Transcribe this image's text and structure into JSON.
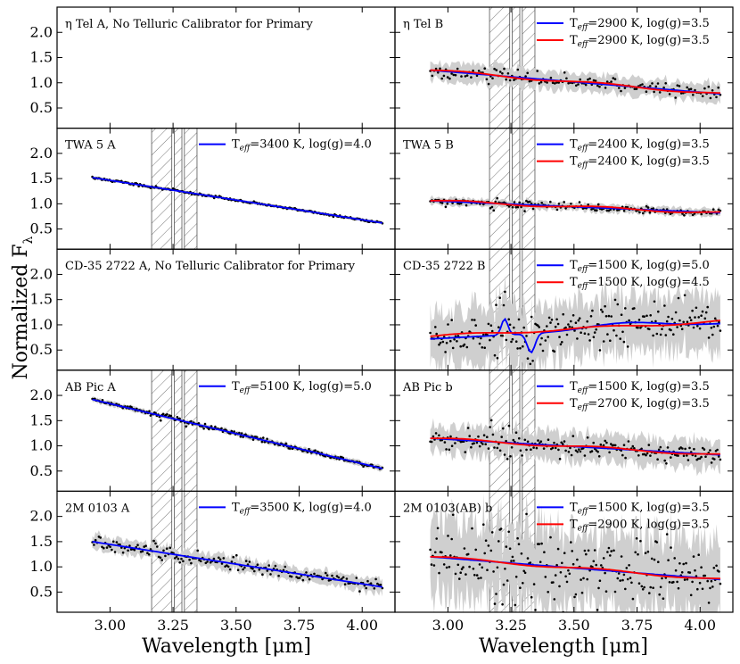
{
  "figure": {
    "ylabel_main": "Normalized F",
    "ylabel_sub": "λ",
    "xlabel": "Wavelength [μm]"
  },
  "chart_data": {
    "type": "scatter",
    "x_range": [
      2.79,
      4.13
    ],
    "x_ticks": [
      3.0,
      3.25,
      3.5,
      3.75,
      4.0
    ],
    "x_tick_labels": [
      "3.00",
      "3.25",
      "3.50",
      "3.75",
      "4.00"
    ],
    "y_range": [
      0.1,
      2.5
    ],
    "y_ticks": [
      0.5,
      1.0,
      1.5,
      2.0
    ],
    "y_tick_labels": [
      "0.5",
      "1.0",
      "1.5",
      "2.0"
    ],
    "hatched_bands": [
      [
        3.165,
        3.245
      ],
      [
        3.255,
        3.285
      ],
      [
        3.295,
        3.345
      ]
    ],
    "wavelength_range": [
      2.93,
      4.08
    ],
    "panels": [
      {
        "row": 0,
        "col": 0,
        "title": "η Tel A, No Telluric Calibrator for Primary",
        "has_data": false,
        "hatch": false,
        "series": []
      },
      {
        "row": 0,
        "col": 1,
        "title": "η Tel B",
        "has_data": true,
        "hatch": true,
        "y_start": 1.25,
        "y_end": 0.78,
        "noise": 0.06,
        "band": 0.18,
        "n_points": 150,
        "dip": 0,
        "series": [
          {
            "color": "#0000ff",
            "label_pre": "T",
            "label_sub": "eff",
            "label_post": "=2900 K, log(g)=3.5"
          },
          {
            "color": "#ff0000",
            "label_pre": "T",
            "label_sub": "eff",
            "label_post": "=2900 K, log(g)=3.5"
          }
        ]
      },
      {
        "row": 1,
        "col": 0,
        "title": "TWA 5 A",
        "has_data": true,
        "hatch": true,
        "y_start": 1.52,
        "y_end": 0.62,
        "noise": 0.012,
        "band": 0.03,
        "n_points": 220,
        "dip": 0,
        "series": [
          {
            "color": "#0000ff",
            "label_pre": "T",
            "label_sub": "eff",
            "label_post": "=3400 K, log(g)=4.0"
          }
        ]
      },
      {
        "row": 1,
        "col": 1,
        "title": "TWA 5 B",
        "has_data": true,
        "hatch": true,
        "y_start": 1.06,
        "y_end": 0.82,
        "noise": 0.035,
        "band": 0.08,
        "n_points": 170,
        "dip": 0,
        "series": [
          {
            "color": "#0000ff",
            "label_pre": "T",
            "label_sub": "eff",
            "label_post": "=2400 K, log(g)=3.5"
          },
          {
            "color": "#ff0000",
            "label_pre": "T",
            "label_sub": "eff",
            "label_post": "=2400 K, log(g)=3.5"
          }
        ]
      },
      {
        "row": 2,
        "col": 0,
        "title": "CD-35 2722 A, No Telluric Calibrator for Primary",
        "has_data": false,
        "hatch": false,
        "series": []
      },
      {
        "row": 2,
        "col": 1,
        "title": "CD-35 2722 B",
        "has_data": true,
        "hatch": true,
        "y_start": 0.72,
        "y_end": 1.02,
        "noise": 0.2,
        "band": 0.55,
        "n_points": 230,
        "dip": 1,
        "series": [
          {
            "color": "#0000ff",
            "label_pre": "T",
            "label_sub": "eff",
            "label_post": "=1500 K, log(g)=5.0"
          },
          {
            "color": "#ff0000",
            "label_pre": "T",
            "label_sub": "eff",
            "label_post": "=1500 K, log(g)=4.5"
          }
        ]
      },
      {
        "row": 3,
        "col": 0,
        "title": "AB Pic A",
        "has_data": true,
        "hatch": true,
        "y_start": 1.92,
        "y_end": 0.55,
        "noise": 0.02,
        "band": 0.05,
        "n_points": 230,
        "dip": 0,
        "series": [
          {
            "color": "#0000ff",
            "label_pre": "T",
            "label_sub": "eff",
            "label_post": "=5100 K, log(g)=5.0"
          }
        ]
      },
      {
        "row": 3,
        "col": 1,
        "title": "AB Pic b",
        "has_data": true,
        "hatch": true,
        "y_start": 1.15,
        "y_end": 0.82,
        "noise": 0.1,
        "band": 0.28,
        "n_points": 200,
        "dip": 0,
        "series": [
          {
            "color": "#0000ff",
            "label_pre": "T",
            "label_sub": "eff",
            "label_post": "=1500 K, log(g)=3.5"
          },
          {
            "color": "#ff0000",
            "label_pre": "T",
            "label_sub": "eff",
            "label_post": "=2700 K, log(g)=3.5"
          }
        ]
      },
      {
        "row": 4,
        "col": 0,
        "title": "2M 0103 A",
        "has_data": true,
        "hatch": true,
        "y_start": 1.5,
        "y_end": 0.6,
        "noise": 0.06,
        "band": 0.14,
        "n_points": 180,
        "dip": 0,
        "series": [
          {
            "color": "#0000ff",
            "label_pre": "T",
            "label_sub": "eff",
            "label_post": "=3500 K, log(g)=4.0"
          }
        ]
      },
      {
        "row": 4,
        "col": 1,
        "title": "2M 0103(AB) b",
        "has_data": true,
        "hatch": true,
        "y_start": 1.2,
        "y_end": 0.75,
        "noise": 0.3,
        "band": 0.75,
        "n_points": 230,
        "dip": 0,
        "series": [
          {
            "color": "#0000ff",
            "label_pre": "T",
            "label_sub": "eff",
            "label_post": "=1500 K, log(g)=3.5"
          },
          {
            "color": "#ff0000",
            "label_pre": "T",
            "label_sub": "eff",
            "label_post": "=2900 K, log(g)=3.5"
          }
        ]
      }
    ]
  }
}
